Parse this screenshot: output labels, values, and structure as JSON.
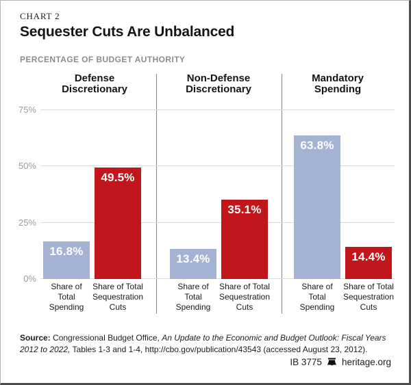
{
  "header": {
    "kicker": "CHART 2",
    "title": "Sequester Cuts Are Unbalanced",
    "subtitle": "PERCENTAGE OF BUDGET AUTHORITY"
  },
  "chart_data": {
    "type": "bar",
    "title": "Sequester Cuts Are Unbalanced",
    "units": "Percentage of Budget Authority",
    "categories": [
      "Defense Discretionary",
      "Non-Defense Discretionary",
      "Mandatory Spending"
    ],
    "series": [
      {
        "name": "Share of Total Spending",
        "label_lines": "Share of\nTotal\nSpending",
        "values": [
          16.8,
          13.4,
          63.8
        ],
        "value_labels": [
          "16.8%",
          "13.4%",
          "63.8%"
        ],
        "color": "#a4b2d4"
      },
      {
        "name": "Share of Total Sequestration Cuts",
        "label_lines": "Share of Total\nSequestration\nCuts",
        "values": [
          49.5,
          35.1,
          14.4
        ],
        "value_labels": [
          "49.5%",
          "35.1%",
          "14.4%"
        ],
        "color": "#c3161c"
      }
    ],
    "y_ticks": [
      0,
      25,
      50,
      75
    ],
    "y_tick_suffix": "%",
    "ylim": [
      0,
      80
    ],
    "grid": true,
    "legend_position": "none"
  },
  "source": {
    "label": "Source:",
    "pre_italic": " Congressional Budget Office, ",
    "italic": "An Update to the Economic and Budget Outlook: Fiscal Years 2012 to 2022,",
    "post_italic": " Tables 1-3 and 1-4, http://cbo.gov/publication/43543 (accessed August 23, 2012)."
  },
  "footer": {
    "doc_id": "IB 3775",
    "site": "heritage.org",
    "logo": "heritage-bell"
  }
}
